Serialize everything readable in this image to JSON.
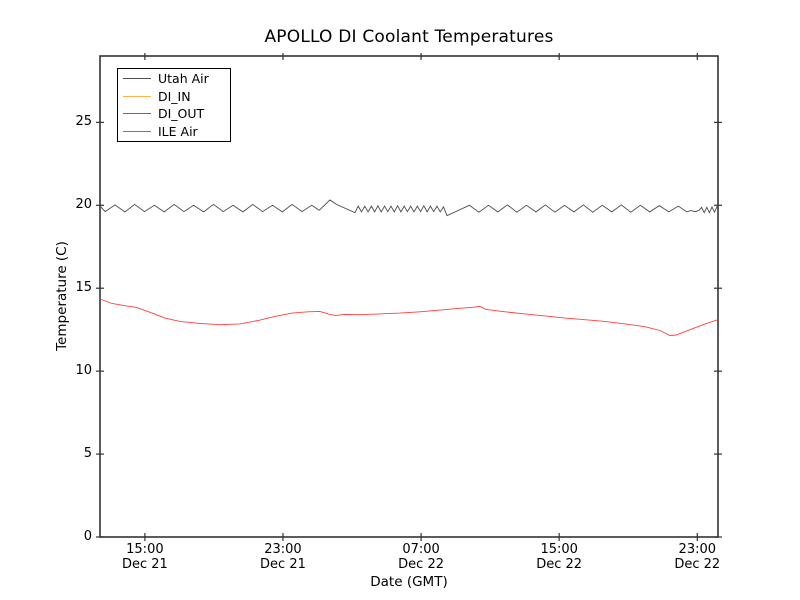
{
  "figure": {
    "background": "#ffffff",
    "frame_color": "#333333"
  },
  "chart_data": {
    "type": "line",
    "title": "APOLLO DI Coolant Temperatures",
    "xlabel": "Date (GMT)",
    "ylabel": "Temperature (C)",
    "ylim": [
      0,
      29
    ],
    "yticks": [
      0,
      5,
      10,
      15,
      20,
      25
    ],
    "xlim_hours": [
      12.4,
      48.2
    ],
    "x_unit": "hours since Dec 21 00:00 GMT",
    "grid": false,
    "legend_position": "upper left",
    "xticks": [
      {
        "hour": 15,
        "time": "15:00",
        "date": "Dec 21"
      },
      {
        "hour": 23,
        "time": "23:00",
        "date": "Dec 21"
      },
      {
        "hour": 31,
        "time": "07:00",
        "date": "Dec 22"
      },
      {
        "hour": 39,
        "time": "15:00",
        "date": "Dec 22"
      },
      {
        "hour": 47,
        "time": "23:00",
        "date": "Dec 22"
      }
    ],
    "series": [
      {
        "name": "Utah Air",
        "color": "#4d4d4d",
        "points": [
          [
            12.4,
            19.95
          ],
          [
            12.7,
            19.62
          ],
          [
            13.27,
            20.02
          ],
          [
            13.84,
            19.6
          ],
          [
            14.41,
            20.05
          ],
          [
            14.98,
            19.62
          ],
          [
            15.55,
            20.0
          ],
          [
            16.12,
            19.6
          ],
          [
            16.69,
            20.05
          ],
          [
            17.26,
            19.62
          ],
          [
            17.83,
            20.0
          ],
          [
            18.4,
            19.6
          ],
          [
            18.97,
            20.05
          ],
          [
            19.54,
            19.62
          ],
          [
            20.11,
            20.0
          ],
          [
            20.68,
            19.6
          ],
          [
            21.25,
            20.05
          ],
          [
            21.82,
            19.62
          ],
          [
            22.39,
            20.0
          ],
          [
            22.96,
            19.6
          ],
          [
            23.53,
            20.05
          ],
          [
            24.1,
            19.62
          ],
          [
            24.67,
            20.0
          ],
          [
            25.1,
            19.7
          ],
          [
            25.72,
            20.32
          ],
          [
            26.1,
            20.05
          ],
          [
            27.17,
            19.55
          ],
          [
            27.36,
            19.95
          ],
          [
            27.55,
            19.6
          ],
          [
            27.74,
            19.95
          ],
          [
            27.93,
            19.6
          ],
          [
            28.12,
            19.95
          ],
          [
            28.31,
            19.6
          ],
          [
            28.5,
            19.97
          ],
          [
            28.69,
            19.6
          ],
          [
            28.88,
            19.95
          ],
          [
            29.07,
            19.62
          ],
          [
            29.26,
            19.95
          ],
          [
            29.45,
            19.6
          ],
          [
            29.64,
            19.97
          ],
          [
            29.83,
            19.6
          ],
          [
            30.02,
            19.95
          ],
          [
            30.21,
            19.62
          ],
          [
            30.4,
            19.95
          ],
          [
            30.59,
            19.6
          ],
          [
            30.78,
            19.95
          ],
          [
            30.97,
            19.62
          ],
          [
            31.16,
            19.97
          ],
          [
            31.35,
            19.6
          ],
          [
            31.54,
            19.95
          ],
          [
            31.73,
            19.62
          ],
          [
            31.92,
            19.95
          ],
          [
            32.11,
            19.6
          ],
          [
            32.3,
            19.9
          ],
          [
            32.5,
            19.38
          ],
          [
            33.8,
            20.0
          ],
          [
            34.35,
            19.58
          ],
          [
            34.9,
            20.0
          ],
          [
            35.45,
            19.6
          ],
          [
            36.0,
            20.02
          ],
          [
            36.55,
            19.58
          ],
          [
            37.1,
            20.0
          ],
          [
            37.65,
            19.6
          ],
          [
            38.2,
            20.02
          ],
          [
            38.75,
            19.58
          ],
          [
            39.3,
            20.0
          ],
          [
            39.85,
            19.6
          ],
          [
            40.4,
            20.02
          ],
          [
            40.95,
            19.58
          ],
          [
            41.5,
            20.0
          ],
          [
            42.05,
            19.6
          ],
          [
            42.6,
            20.02
          ],
          [
            43.15,
            19.58
          ],
          [
            43.7,
            20.0
          ],
          [
            44.25,
            19.6
          ],
          [
            44.8,
            19.98
          ],
          [
            45.35,
            19.6
          ],
          [
            45.9,
            19.95
          ],
          [
            46.4,
            19.6
          ],
          [
            46.6,
            19.68
          ],
          [
            46.9,
            19.62
          ],
          [
            47.1,
            19.7
          ],
          [
            47.25,
            19.88
          ],
          [
            47.4,
            19.55
          ],
          [
            47.55,
            19.88
          ],
          [
            47.7,
            19.55
          ],
          [
            47.85,
            19.9
          ],
          [
            48.0,
            19.58
          ],
          [
            48.2,
            20.05
          ]
        ]
      },
      {
        "name": "DI_IN",
        "color": "#ffb347",
        "points": []
      },
      {
        "name": "DI_OUT",
        "color": "#9551a0",
        "points": []
      },
      {
        "name": "ILE Air",
        "color": "#ff4040",
        "points": [
          [
            12.4,
            14.35
          ],
          [
            13.1,
            14.08
          ],
          [
            13.79,
            13.95
          ],
          [
            14.49,
            13.85
          ],
          [
            15.3,
            13.55
          ],
          [
            16.17,
            13.2
          ],
          [
            17.03,
            13.0
          ],
          [
            18.19,
            12.88
          ],
          [
            19.35,
            12.8
          ],
          [
            20.51,
            12.85
          ],
          [
            21.55,
            13.05
          ],
          [
            22.54,
            13.3
          ],
          [
            23.52,
            13.5
          ],
          [
            24.45,
            13.58
          ],
          [
            25.14,
            13.6
          ],
          [
            25.72,
            13.42
          ],
          [
            26.07,
            13.35
          ],
          [
            26.53,
            13.42
          ],
          [
            27.46,
            13.4
          ],
          [
            28.62,
            13.45
          ],
          [
            29.78,
            13.5
          ],
          [
            30.94,
            13.58
          ],
          [
            32.1,
            13.68
          ],
          [
            33.14,
            13.78
          ],
          [
            33.95,
            13.85
          ],
          [
            34.41,
            13.9
          ],
          [
            34.76,
            13.72
          ],
          [
            35.86,
            13.58
          ],
          [
            37.02,
            13.45
          ],
          [
            38.18,
            13.33
          ],
          [
            39.34,
            13.2
          ],
          [
            40.49,
            13.1
          ],
          [
            41.65,
            13.0
          ],
          [
            42.81,
            12.85
          ],
          [
            43.97,
            12.68
          ],
          [
            44.84,
            12.45
          ],
          [
            45.42,
            12.15
          ],
          [
            45.77,
            12.18
          ],
          [
            46.58,
            12.5
          ],
          [
            47.45,
            12.85
          ],
          [
            48.2,
            13.1
          ]
        ]
      }
    ]
  }
}
